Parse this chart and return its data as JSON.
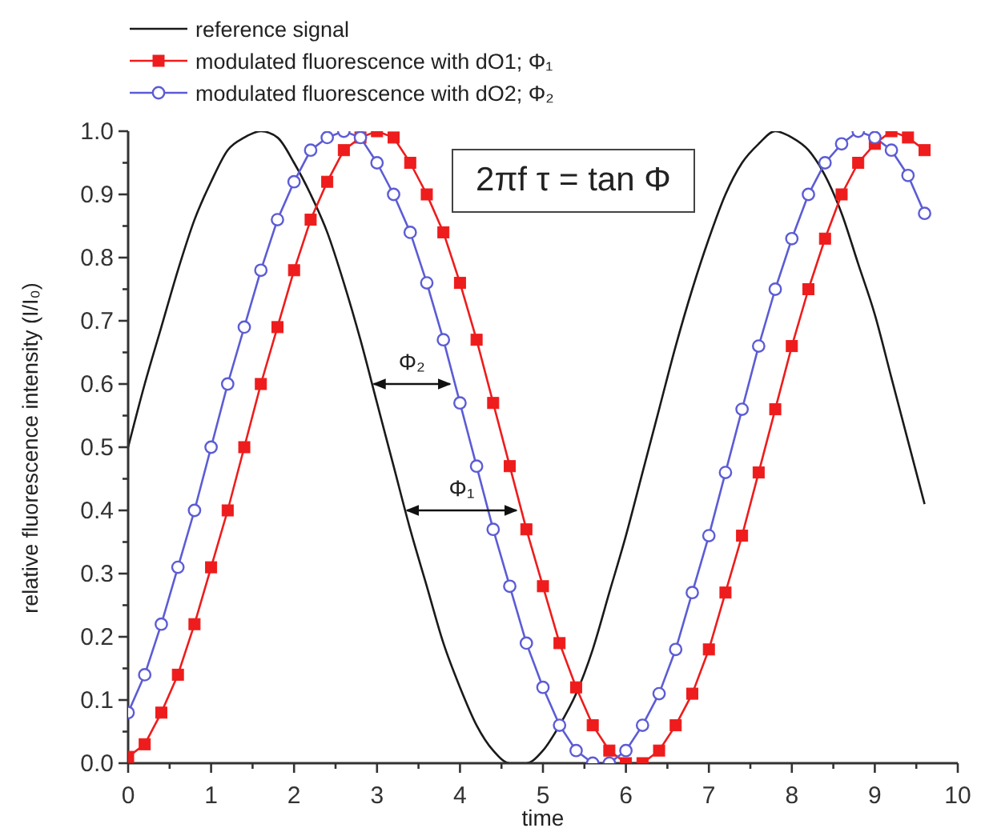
{
  "chart_data": {
    "type": "line",
    "xlabel": "time",
    "ylabel": "relative fluorescence intensity (I/I₀)",
    "x": [
      0,
      0.2,
      0.4,
      0.6,
      0.8,
      1,
      1.2,
      1.4,
      1.6,
      1.8,
      2,
      2.2,
      2.4,
      2.6,
      2.8,
      3,
      3.2,
      3.4,
      3.6,
      3.8,
      4,
      4.2,
      4.4,
      4.6,
      4.8,
      5,
      5.2,
      5.4,
      5.6,
      5.8,
      6,
      6.2,
      6.4,
      6.6,
      6.8,
      7,
      7.2,
      7.4,
      7.6,
      7.8,
      8,
      8.2,
      8.4,
      8.6,
      8.8,
      9,
      9.2,
      9.4,
      9.6
    ],
    "series": [
      {
        "name": "reference signal",
        "color": "#1a1a1a",
        "marker": "none",
        "values": [
          0.5,
          0.6,
          0.69,
          0.78,
          0.86,
          0.92,
          0.97,
          0.99,
          1.0,
          0.99,
          0.95,
          0.9,
          0.84,
          0.76,
          0.67,
          0.57,
          0.47,
          0.37,
          0.28,
          0.19,
          0.12,
          0.06,
          0.02,
          0.0,
          0.0,
          0.02,
          0.06,
          0.11,
          0.18,
          0.27,
          0.36,
          0.46,
          0.56,
          0.66,
          0.75,
          0.83,
          0.9,
          0.95,
          0.98,
          1.0,
          0.99,
          0.97,
          0.93,
          0.87,
          0.79,
          0.71,
          0.61,
          0.51,
          0.41
        ]
      },
      {
        "name": "modulated fluorescence with dO1; Φ₁",
        "color": "#ee1c1c",
        "marker": "square",
        "values": [
          0.01,
          0.03,
          0.08,
          0.14,
          0.22,
          0.31,
          0.4,
          0.5,
          0.6,
          0.69,
          0.78,
          0.86,
          0.92,
          0.97,
          0.99,
          1.0,
          0.99,
          0.95,
          0.9,
          0.84,
          0.76,
          0.67,
          0.57,
          0.47,
          0.37,
          0.28,
          0.19,
          0.12,
          0.06,
          0.02,
          0.0,
          0.0,
          0.02,
          0.06,
          0.11,
          0.18,
          0.27,
          0.36,
          0.46,
          0.56,
          0.66,
          0.75,
          0.83,
          0.9,
          0.95,
          0.98,
          1.0,
          0.99,
          0.97
        ]
      },
      {
        "name": "modulated fluorescence with dO2; Φ₂",
        "color": "#5c5cd6",
        "marker": "circle",
        "values": [
          0.08,
          0.14,
          0.22,
          0.31,
          0.4,
          0.5,
          0.6,
          0.69,
          0.78,
          0.86,
          0.92,
          0.97,
          0.99,
          1.0,
          0.99,
          0.95,
          0.9,
          0.84,
          0.76,
          0.67,
          0.57,
          0.47,
          0.37,
          0.28,
          0.19,
          0.12,
          0.06,
          0.02,
          0.0,
          0.0,
          0.02,
          0.06,
          0.11,
          0.18,
          0.27,
          0.36,
          0.46,
          0.56,
          0.66,
          0.75,
          0.83,
          0.9,
          0.95,
          0.98,
          1.0,
          0.99,
          0.97,
          0.93,
          0.87
        ]
      }
    ],
    "xlim": [
      0,
      10
    ],
    "xticks": [
      0,
      {
        "value": 0.5,
        "label": null
      },
      1,
      {
        "value": 1.5,
        "label": null
      },
      2,
      {
        "value": 2.5,
        "label": null
      },
      3,
      {
        "value": 3.5,
        "label": null
      },
      4,
      {
        "value": 4.5,
        "label": null
      },
      5,
      {
        "value": 5.5,
        "label": null
      },
      6,
      {
        "value": 6.5,
        "label": null
      },
      7,
      {
        "value": 7.5,
        "label": null
      },
      8,
      {
        "value": 8.5,
        "label": null
      },
      9,
      {
        "value": 9.5,
        "label": null
      },
      10
    ],
    "ylim": [
      0,
      1
    ],
    "yticks": [
      {
        "value": 0,
        "label": "0.0"
      },
      {
        "value": 0.05,
        "label": null
      },
      {
        "value": 0.1,
        "label": "0.1"
      },
      {
        "value": 0.15,
        "label": null
      },
      {
        "value": 0.2,
        "label": "0.2"
      },
      {
        "value": 0.25,
        "label": null
      },
      {
        "value": 0.3,
        "label": "0.3"
      },
      {
        "value": 0.35,
        "label": null
      },
      {
        "value": 0.4,
        "label": "0.4"
      },
      {
        "value": 0.45,
        "label": null
      },
      {
        "value": 0.5,
        "label": "0.5"
      },
      {
        "value": 0.55,
        "label": null
      },
      {
        "value": 0.6,
        "label": "0.6"
      },
      {
        "value": 0.65,
        "label": null
      },
      {
        "value": 0.7,
        "label": "0.7"
      },
      {
        "value": 0.75,
        "label": null
      },
      {
        "value": 0.8,
        "label": "0.8"
      },
      {
        "value": 0.85,
        "label": null
      },
      {
        "value": 0.9,
        "label": "0.9"
      },
      {
        "value": 0.95,
        "label": null
      },
      {
        "value": 1,
        "label": "1.0"
      }
    ],
    "legend": "top",
    "annotations": [
      "2πf τ = tan Φ",
      {
        "text": "Φ₂",
        "x": 3.9,
        "y": 0.6
      },
      {
        "text": "Φ₁",
        "x": 4.7,
        "y": 0.4
      }
    ]
  }
}
